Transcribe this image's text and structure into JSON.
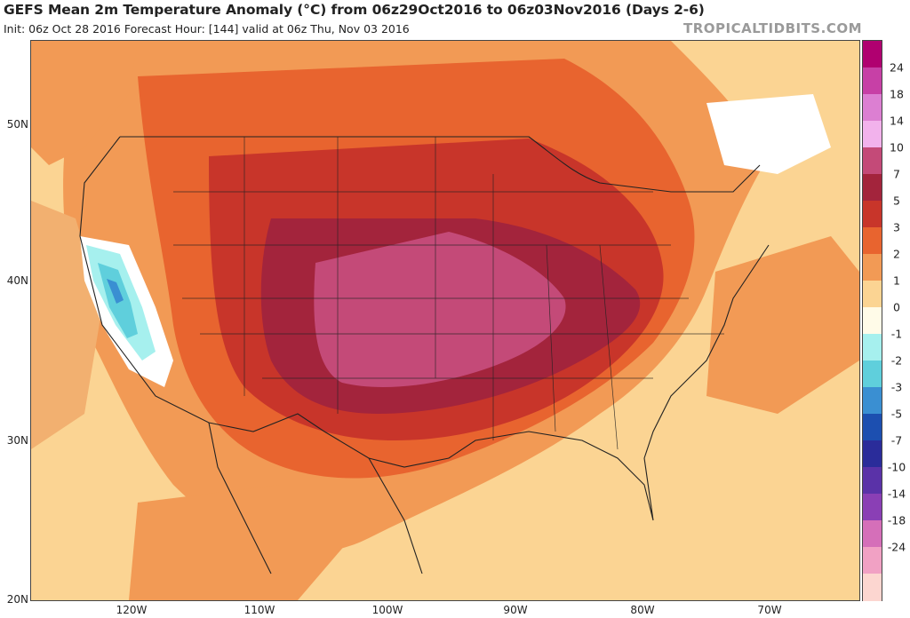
{
  "header": {
    "title": "GEFS Mean 2m Temperature Anomaly (°C) from 06z29Oct2016 to 06z03Nov2016 (Days 2-6)",
    "subtitle": "Init: 06z Oct 28 2016   Forecast Hour: [144]   valid at 06z Thu, Nov 03 2016",
    "brand": "TROPICALTIDBITS.COM"
  },
  "map": {
    "latitude_labels": [
      "50N",
      "40N",
      "30N",
      "20N"
    ],
    "longitude_labels": [
      "120W",
      "110W",
      "100W",
      "90W",
      "80W",
      "70W"
    ]
  },
  "colorbar": {
    "levels": [
      "24",
      "18",
      "14",
      "10",
      "7",
      "5",
      "3",
      "2",
      "1",
      "0",
      "-1",
      "-2",
      "-3",
      "-5",
      "-7",
      "-10",
      "-14",
      "-18",
      "-24"
    ],
    "colors": [
      "#b00070",
      "#c740a6",
      "#dc7fd2",
      "#f2b2ec",
      "#c44a78",
      "#a3243c",
      "#c8352a",
      "#e8642f",
      "#f29a55",
      "#fbd493",
      "#fffbe8",
      "#a6f0ee",
      "#5fcfdc",
      "#3a8fd2",
      "#1c4fb0",
      "#2a2c9a",
      "#5a32a8",
      "#8a3fb5",
      "#d56fb9",
      "#f1a1c4",
      "#fcd6d0"
    ]
  },
  "colors": {
    "outline": "#222222",
    "ocean_warm": "#fbd493",
    "water_cold": "#a6f0ee"
  }
}
